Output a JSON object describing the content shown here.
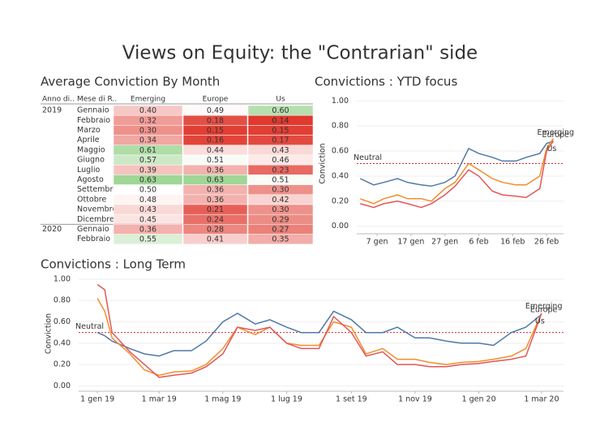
{
  "title": "Views on Equity: the \"Contrarian\" side",
  "heatmap": {
    "title": "Average Conviction By Month",
    "row_header_labels": [
      "Anno di..",
      "Mese di R.."
    ],
    "columns": [
      "Emerging",
      "Europe",
      "Us"
    ],
    "center": 0.5,
    "colors": {
      "low": "#e0392e",
      "mid": "#ffffff",
      "high": "#9fd796"
    },
    "groups": [
      {
        "year": "2019",
        "rows": [
          {
            "month": "Gennaio",
            "values": [
              0.4,
              0.49,
              0.6
            ],
            "value_labels": [
              "0.40",
              "0.49",
              "0.60"
            ]
          },
          {
            "month": "Febbraio",
            "values": [
              0.32,
              0.18,
              0.14
            ],
            "value_labels": [
              "0.32",
              "0.18",
              "0.14"
            ]
          },
          {
            "month": "Marzo",
            "values": [
              0.3,
              0.15,
              0.15
            ],
            "value_labels": [
              "0.30",
              "0.15",
              "0.15"
            ]
          },
          {
            "month": "Aprile",
            "values": [
              0.34,
              0.16,
              0.17
            ],
            "value_labels": [
              "0.34",
              "0.16",
              "0.17"
            ]
          },
          {
            "month": "Maggio",
            "values": [
              0.61,
              0.44,
              0.43
            ],
            "value_labels": [
              "0.61",
              "0.44",
              "0.43"
            ]
          },
          {
            "month": "Giugno",
            "values": [
              0.57,
              0.51,
              0.46
            ],
            "value_labels": [
              "0.57",
              "0.51",
              "0.46"
            ]
          },
          {
            "month": "Luglio",
            "values": [
              0.39,
              0.36,
              0.23
            ],
            "value_labels": [
              "0.39",
              "0.36",
              "0.23"
            ]
          },
          {
            "month": "Agosto",
            "values": [
              0.63,
              0.63,
              0.51
            ],
            "value_labels": [
              "0.63",
              "0.63",
              "0.51"
            ]
          },
          {
            "month": "Settembre",
            "values": [
              0.5,
              0.36,
              0.3
            ],
            "value_labels": [
              "0.50",
              "0.36",
              "0.30"
            ]
          },
          {
            "month": "Ottobre",
            "values": [
              0.48,
              0.36,
              0.42
            ],
            "value_labels": [
              "0.48",
              "0.36",
              "0.42"
            ]
          },
          {
            "month": "Novembre",
            "values": [
              0.43,
              0.21,
              0.3
            ],
            "value_labels": [
              "0.43",
              "0.21",
              "0.30"
            ]
          },
          {
            "month": "Dicembre",
            "values": [
              0.45,
              0.24,
              0.29
            ],
            "value_labels": [
              "0.45",
              "0.24",
              "0.29"
            ]
          }
        ]
      },
      {
        "year": "2020",
        "rows": [
          {
            "month": "Gennaio",
            "values": [
              0.36,
              0.28,
              0.27
            ],
            "value_labels": [
              "0.36",
              "0.28",
              "0.27"
            ]
          },
          {
            "month": "Febbraio",
            "values": [
              0.55,
              0.41,
              0.35
            ],
            "value_labels": [
              "0.55",
              "0.41",
              "0.35"
            ]
          }
        ]
      }
    ]
  },
  "chart_data": [
    {
      "type": "line",
      "title": "Convictions : YTD focus",
      "ylabel": "Conviction",
      "grid": true,
      "x": [
        "01-02",
        "01-06",
        "01-09",
        "01-13",
        "01-16",
        "01-20",
        "01-23",
        "01-27",
        "01-30",
        "02-03",
        "02-06",
        "02-10",
        "02-13",
        "02-17",
        "02-20",
        "02-24",
        "02-26",
        "02-28"
      ],
      "xlim": [
        "01-01",
        "03-02"
      ],
      "xticks": [
        {
          "value": "01-07",
          "label": "7 gen"
        },
        {
          "value": "01-17",
          "label": "17 gen"
        },
        {
          "value": "01-27",
          "label": "27 gen"
        },
        {
          "value": "02-06",
          "label": "6 feb"
        },
        {
          "value": "02-16",
          "label": "16 feb"
        },
        {
          "value": "02-26",
          "label": "26 feb"
        }
      ],
      "ylim": [
        -0.06,
        1.06
      ],
      "yticks": [
        {
          "value": 0,
          "label": "0.00"
        },
        {
          "value": 0.2,
          "label": "0.20"
        },
        {
          "value": 0.4,
          "label": "0.40"
        },
        {
          "value": 0.6,
          "label": "0.60"
        },
        {
          "value": 0.8,
          "label": "0.80"
        },
        {
          "value": 1,
          "label": "1.00"
        }
      ],
      "annotation": {
        "text": "Neutral",
        "value": 0.5,
        "color": "#d62728"
      },
      "series": [
        {
          "name": "Emerging",
          "color": "#4e79a7",
          "values": [
            0.38,
            0.33,
            0.35,
            0.38,
            0.35,
            0.33,
            0.32,
            0.35,
            0.4,
            0.62,
            0.58,
            0.55,
            0.52,
            0.52,
            0.55,
            0.58,
            0.66,
            0.68
          ]
        },
        {
          "name": "Europe",
          "color": "#f28e2b",
          "values": [
            0.22,
            0.18,
            0.22,
            0.25,
            0.22,
            0.22,
            0.2,
            0.3,
            0.35,
            0.5,
            0.45,
            0.38,
            0.35,
            0.33,
            0.33,
            0.4,
            0.62,
            0.7
          ]
        },
        {
          "name": "Us",
          "color": "#e15759",
          "values": [
            0.18,
            0.15,
            0.18,
            0.2,
            0.18,
            0.15,
            0.18,
            0.25,
            0.32,
            0.45,
            0.4,
            0.28,
            0.25,
            0.24,
            0.23,
            0.3,
            0.6,
            0.68
          ]
        }
      ]
    },
    {
      "type": "line",
      "title": "Convictions : Long Term",
      "ylabel": "Conviction",
      "grid": true,
      "x": [
        "2019-01-01",
        "2019-01-08",
        "2019-01-15",
        "2019-02-01",
        "2019-02-15",
        "2019-03-01",
        "2019-03-15",
        "2019-04-01",
        "2019-04-15",
        "2019-05-01",
        "2019-05-15",
        "2019-06-01",
        "2019-06-15",
        "2019-07-01",
        "2019-07-15",
        "2019-08-01",
        "2019-08-15",
        "2019-09-01",
        "2019-09-15",
        "2019-10-01",
        "2019-10-15",
        "2019-11-01",
        "2019-11-15",
        "2019-12-01",
        "2019-12-15",
        "2020-01-01",
        "2020-01-15",
        "2020-02-01",
        "2020-02-15",
        "2020-03-01"
      ],
      "xlim": [
        "2018-12-14",
        "2020-03-22"
      ],
      "xticks": [
        {
          "value": "2019-01-01",
          "label": "1 gen 19"
        },
        {
          "value": "2019-03-01",
          "label": "1 mar 19"
        },
        {
          "value": "2019-05-01",
          "label": "1 mag 19"
        },
        {
          "value": "2019-07-01",
          "label": "1 lug 19"
        },
        {
          "value": "2019-09-01",
          "label": "1 set 19"
        },
        {
          "value": "2019-11-01",
          "label": "1 nov 19"
        },
        {
          "value": "2020-01-01",
          "label": "1 gen 20"
        },
        {
          "value": "2020-03-01",
          "label": "1 mar 20"
        }
      ],
      "ylim": [
        -0.05,
        1.03
      ],
      "yticks": [
        {
          "value": 0,
          "label": "0.00"
        },
        {
          "value": 0.2,
          "label": "0.20"
        },
        {
          "value": 0.4,
          "label": "0.40"
        },
        {
          "value": 0.6,
          "label": "0.60"
        },
        {
          "value": 0.8,
          "label": "0.80"
        },
        {
          "value": 1,
          "label": "1.00"
        }
      ],
      "annotation": {
        "text": "Neutral",
        "value": 0.5,
        "color": "#d62728"
      },
      "series": [
        {
          "name": "Emerging",
          "color": "#4e79a7",
          "values": [
            0.5,
            0.47,
            0.42,
            0.35,
            0.3,
            0.28,
            0.33,
            0.33,
            0.42,
            0.6,
            0.68,
            0.58,
            0.62,
            0.55,
            0.5,
            0.5,
            0.7,
            0.62,
            0.5,
            0.5,
            0.55,
            0.45,
            0.45,
            0.42,
            0.4,
            0.4,
            0.38,
            0.5,
            0.55,
            0.67
          ]
        },
        {
          "name": "Europe",
          "color": "#f28e2b",
          "values": [
            0.82,
            0.7,
            0.45,
            0.3,
            0.15,
            0.1,
            0.13,
            0.14,
            0.2,
            0.35,
            0.55,
            0.48,
            0.55,
            0.4,
            0.38,
            0.38,
            0.6,
            0.55,
            0.3,
            0.35,
            0.25,
            0.25,
            0.22,
            0.2,
            0.22,
            0.23,
            0.25,
            0.28,
            0.35,
            0.68
          ]
        },
        {
          "name": "Us",
          "color": "#e15759",
          "values": [
            0.95,
            0.9,
            0.5,
            0.32,
            0.2,
            0.08,
            0.1,
            0.12,
            0.18,
            0.3,
            0.55,
            0.52,
            0.55,
            0.4,
            0.35,
            0.35,
            0.65,
            0.5,
            0.28,
            0.32,
            0.2,
            0.2,
            0.18,
            0.18,
            0.2,
            0.21,
            0.23,
            0.25,
            0.28,
            0.68
          ]
        }
      ]
    }
  ]
}
